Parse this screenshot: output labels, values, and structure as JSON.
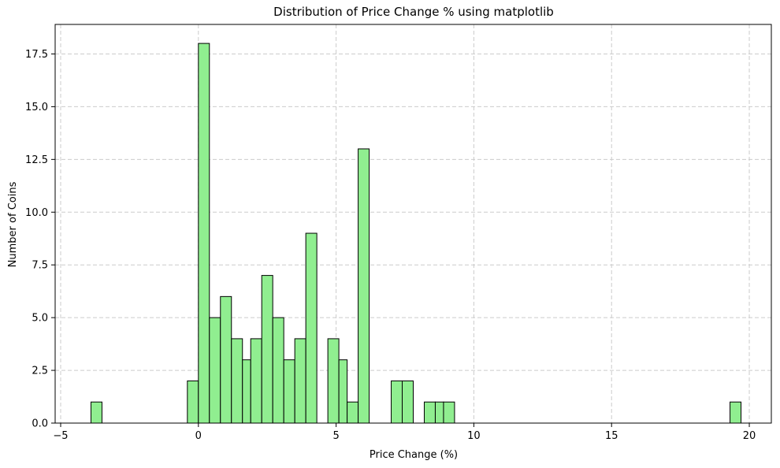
{
  "chart_data": {
    "type": "bar",
    "title": "Distribution of Price Change % using matplotlib",
    "xlabel": "Price Change (%)",
    "ylabel": "Number of Coins",
    "xlim": [
      -5.2,
      20.8
    ],
    "ylim": [
      0,
      18.9
    ],
    "xticks": [
      -5,
      0,
      5,
      10,
      15,
      20
    ],
    "yticks": [
      0.0,
      2.5,
      5.0,
      7.5,
      10.0,
      12.5,
      15.0,
      17.5
    ],
    "xtick_labels": [
      "−5",
      "0",
      "5",
      "10",
      "15",
      "20"
    ],
    "ytick_labels": [
      "0.0",
      "2.5",
      "5.0",
      "7.5",
      "10.0",
      "12.5",
      "15.0",
      "17.5"
    ],
    "grid": true,
    "bar_color": "#90ee90",
    "edge_color": "#000000",
    "bins": [
      {
        "x0": -3.9,
        "x1": -3.5,
        "count": 1
      },
      {
        "x0": -0.4,
        "x1": 0.0,
        "count": 2
      },
      {
        "x0": 0.0,
        "x1": 0.4,
        "count": 18
      },
      {
        "x0": 0.4,
        "x1": 0.8,
        "count": 5
      },
      {
        "x0": 0.8,
        "x1": 1.2,
        "count": 6
      },
      {
        "x0": 1.2,
        "x1": 1.6,
        "count": 4
      },
      {
        "x0": 1.6,
        "x1": 1.9,
        "count": 3
      },
      {
        "x0": 1.9,
        "x1": 2.3,
        "count": 4
      },
      {
        "x0": 2.3,
        "x1": 2.7,
        "count": 7
      },
      {
        "x0": 2.7,
        "x1": 3.1,
        "count": 5
      },
      {
        "x0": 3.1,
        "x1": 3.5,
        "count": 3
      },
      {
        "x0": 3.5,
        "x1": 3.9,
        "count": 4
      },
      {
        "x0": 3.9,
        "x1": 4.3,
        "count": 9
      },
      {
        "x0": 4.7,
        "x1": 5.1,
        "count": 4
      },
      {
        "x0": 5.1,
        "x1": 5.4,
        "count": 3
      },
      {
        "x0": 5.4,
        "x1": 5.8,
        "count": 1
      },
      {
        "x0": 5.8,
        "x1": 6.2,
        "count": 13
      },
      {
        "x0": 7.0,
        "x1": 7.4,
        "count": 2
      },
      {
        "x0": 7.4,
        "x1": 7.8,
        "count": 2
      },
      {
        "x0": 8.2,
        "x1": 8.6,
        "count": 1
      },
      {
        "x0": 8.6,
        "x1": 8.9,
        "count": 1
      },
      {
        "x0": 8.9,
        "x1": 9.3,
        "count": 1
      },
      {
        "x0": 19.3,
        "x1": 19.7,
        "count": 1
      }
    ]
  }
}
